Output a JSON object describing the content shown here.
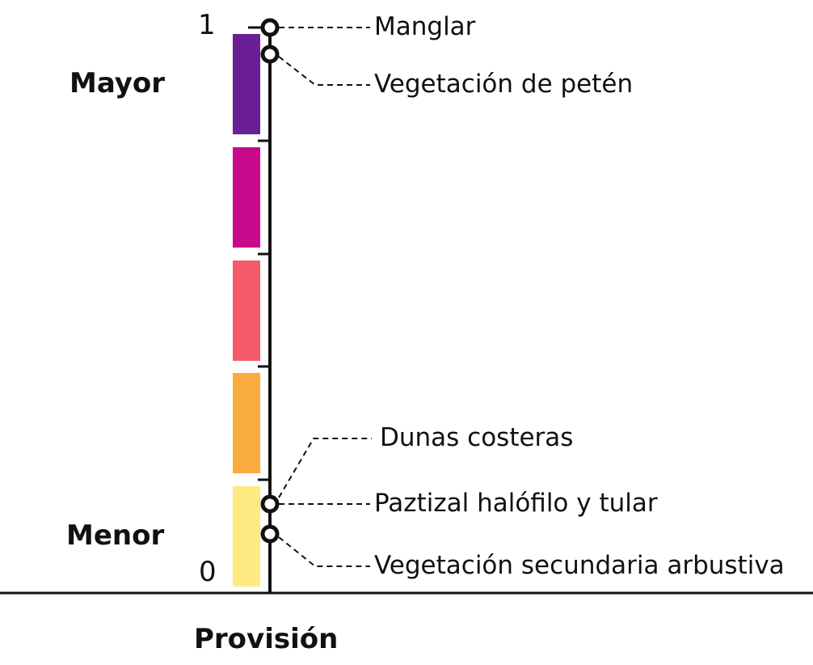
{
  "scale": {
    "max_label": "1",
    "min_label": "0",
    "top_label": "Mayor",
    "bottom_label": "Menor",
    "axis_title": "Provisión"
  },
  "bands": [
    {
      "color": "#6a1f96"
    },
    {
      "color": "#c8098c"
    },
    {
      "color": "#f35a6a"
    },
    {
      "color": "#f9ab3d"
    },
    {
      "color": "#feea80"
    }
  ],
  "items": [
    {
      "label": "Manglar"
    },
    {
      "label": "Vegetación de petén"
    },
    {
      "label": "Dunas costeras"
    },
    {
      "label": "Paztizal halófilo y tular"
    },
    {
      "label": "Vegetación secundaria arbustiva"
    }
  ]
}
